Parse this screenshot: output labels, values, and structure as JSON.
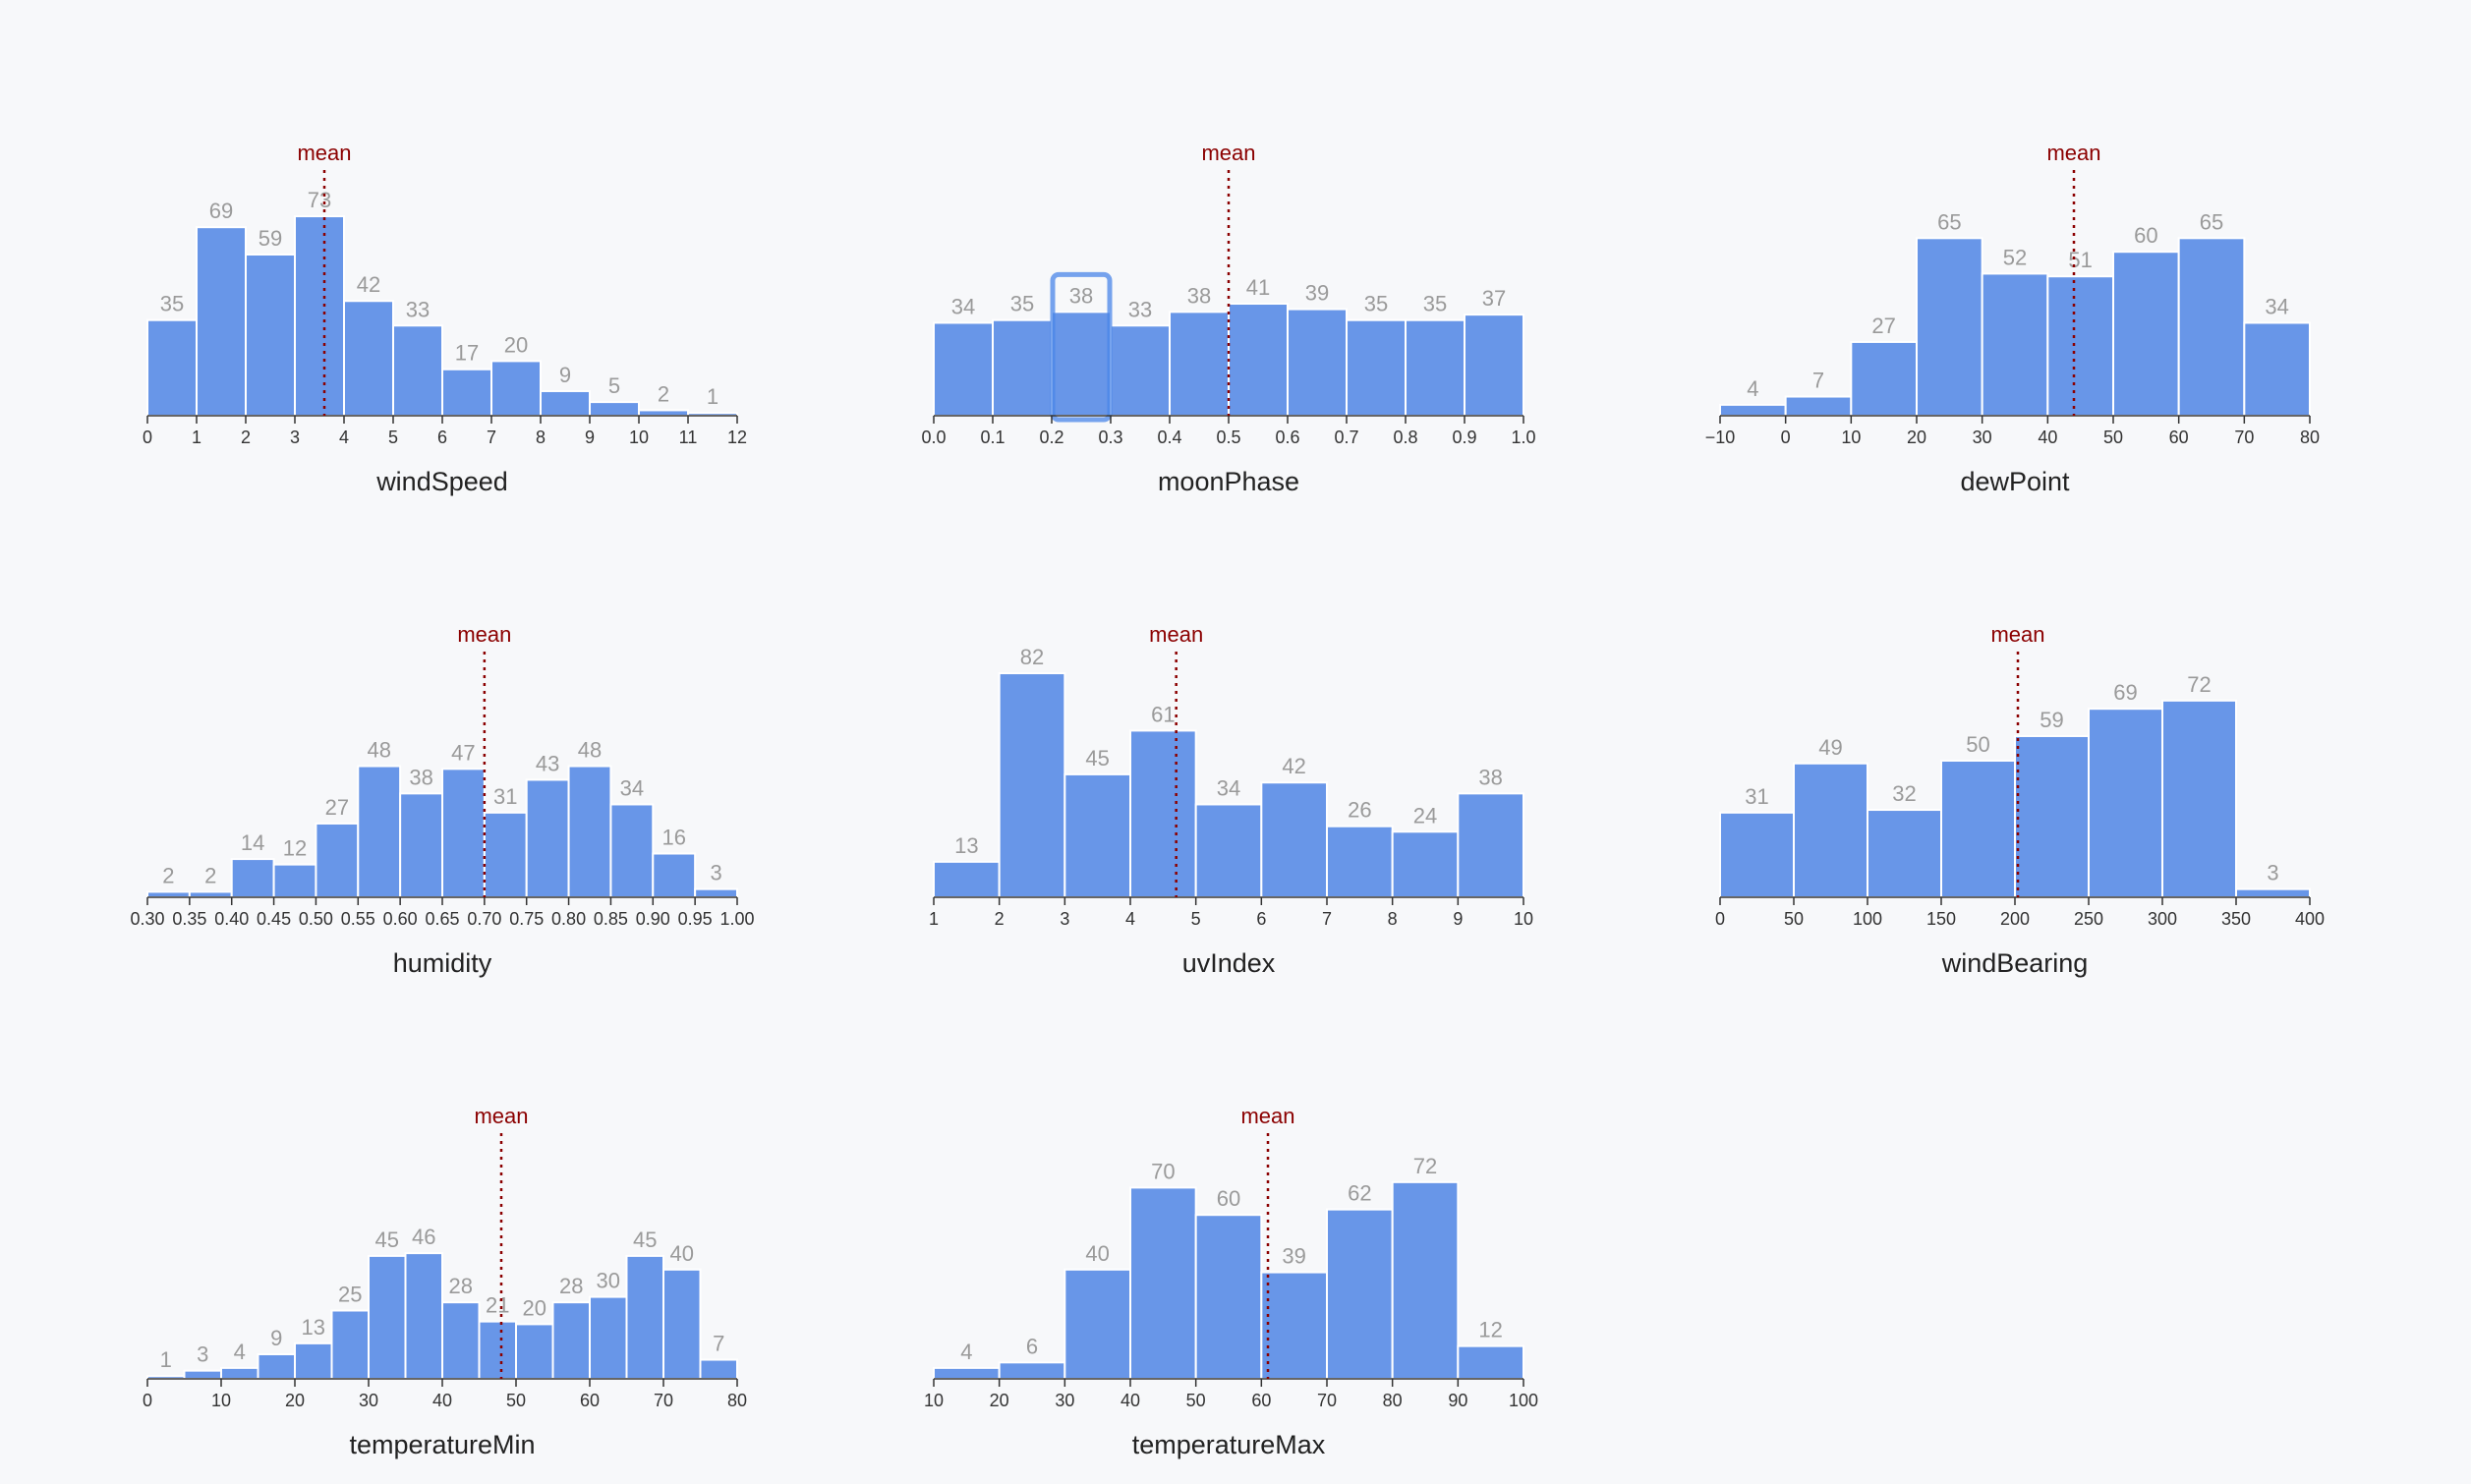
{
  "colors": {
    "bar": "#6896e8",
    "mean": "#8b0000",
    "highlight": "#4a86e8"
  },
  "chart_data": [
    {
      "type": "bar",
      "title": "",
      "xlabel": "windSpeed",
      "mean_label": "mean",
      "mean_value": 3.6,
      "bin_edges": [
        0,
        1,
        2,
        3,
        4,
        5,
        6,
        7,
        8,
        9,
        10,
        11,
        12
      ],
      "values": [
        35,
        69,
        59,
        73,
        42,
        33,
        17,
        20,
        9,
        5,
        2,
        1
      ],
      "ticks": [
        0,
        1,
        2,
        3,
        4,
        5,
        6,
        7,
        8,
        9,
        10,
        11,
        12
      ],
      "tick_labels": [
        "0",
        "1",
        "2",
        "3",
        "4",
        "5",
        "6",
        "7",
        "8",
        "9",
        "10",
        "11",
        "12"
      ]
    },
    {
      "type": "bar",
      "title": "",
      "xlabel": "moonPhase",
      "mean_label": "mean",
      "mean_value": 0.5,
      "highlight_bin": 2,
      "bin_edges": [
        0.0,
        0.1,
        0.2,
        0.3,
        0.4,
        0.5,
        0.6,
        0.7,
        0.8,
        0.9,
        1.0
      ],
      "values": [
        34,
        35,
        38,
        33,
        38,
        41,
        39,
        35,
        35,
        37
      ],
      "ticks": [
        0.0,
        0.1,
        0.2,
        0.3,
        0.4,
        0.5,
        0.6,
        0.7,
        0.8,
        0.9,
        1.0
      ],
      "tick_labels": [
        "0.0",
        "0.1",
        "0.2",
        "0.3",
        "0.4",
        "0.5",
        "0.6",
        "0.7",
        "0.8",
        "0.9",
        "1.0"
      ]
    },
    {
      "type": "bar",
      "title": "",
      "xlabel": "dewPoint",
      "mean_label": "mean",
      "mean_value": 44,
      "bin_edges": [
        -10,
        0,
        10,
        20,
        30,
        40,
        50,
        60,
        70,
        80
      ],
      "values": [
        4,
        7,
        27,
        65,
        52,
        51,
        60,
        65,
        34
      ],
      "ticks": [
        -10,
        0,
        10,
        20,
        30,
        40,
        50,
        60,
        70,
        80
      ],
      "tick_labels": [
        "−10",
        "0",
        "10",
        "20",
        "30",
        "40",
        "50",
        "60",
        "70",
        "80"
      ]
    },
    {
      "type": "bar",
      "title": "",
      "xlabel": "humidity",
      "mean_label": "mean",
      "mean_value": 0.7,
      "bin_edges": [
        0.3,
        0.35,
        0.4,
        0.45,
        0.5,
        0.55,
        0.6,
        0.65,
        0.7,
        0.75,
        0.8,
        0.85,
        0.9,
        0.95,
        1.0
      ],
      "values": [
        2,
        2,
        14,
        12,
        27,
        48,
        38,
        47,
        31,
        43,
        48,
        34,
        16,
        3
      ],
      "ticks": [
        0.3,
        0.35,
        0.4,
        0.45,
        0.5,
        0.55,
        0.6,
        0.65,
        0.7,
        0.75,
        0.8,
        0.85,
        0.9,
        0.95,
        1.0
      ],
      "tick_labels": [
        "0.30",
        "0.35",
        "0.40",
        "0.45",
        "0.50",
        "0.55",
        "0.60",
        "0.65",
        "0.70",
        "0.75",
        "0.80",
        "0.85",
        "0.90",
        "0.95",
        "1.00"
      ]
    },
    {
      "type": "bar",
      "title": "",
      "xlabel": "uvIndex",
      "mean_label": "mean",
      "mean_value": 4.7,
      "bin_edges": [
        1,
        2,
        3,
        4,
        5,
        6,
        7,
        8,
        9,
        10
      ],
      "values": [
        13,
        82,
        45,
        61,
        34,
        42,
        26,
        24,
        38
      ],
      "ticks": [
        1,
        2,
        3,
        4,
        5,
        6,
        7,
        8,
        9,
        10
      ],
      "tick_labels": [
        "1",
        "2",
        "3",
        "4",
        "5",
        "6",
        "7",
        "8",
        "9",
        "10"
      ]
    },
    {
      "type": "bar",
      "title": "",
      "xlabel": "windBearing",
      "mean_label": "mean",
      "mean_value": 202,
      "bin_edges": [
        0,
        50,
        100,
        150,
        200,
        250,
        300,
        350,
        400
      ],
      "values": [
        31,
        49,
        32,
        50,
        59,
        69,
        72,
        3
      ],
      "ticks": [
        0,
        50,
        100,
        150,
        200,
        250,
        300,
        350,
        400
      ],
      "tick_labels": [
        "0",
        "50",
        "100",
        "150",
        "200",
        "250",
        "300",
        "350",
        "400"
      ]
    },
    {
      "type": "bar",
      "title": "",
      "xlabel": "temperatureMin",
      "mean_label": "mean",
      "mean_value": 48,
      "bin_edges": [
        0,
        5,
        10,
        15,
        20,
        25,
        30,
        35,
        40,
        45,
        50,
        55,
        60,
        65,
        70,
        75,
        80
      ],
      "values": [
        1,
        3,
        4,
        9,
        13,
        25,
        45,
        46,
        28,
        21,
        20,
        28,
        30,
        45,
        40,
        7
      ],
      "ticks": [
        0,
        10,
        20,
        30,
        40,
        50,
        60,
        70,
        80
      ],
      "tick_labels": [
        "0",
        "10",
        "20",
        "30",
        "40",
        "50",
        "60",
        "70",
        "80"
      ]
    },
    {
      "type": "bar",
      "title": "",
      "xlabel": "temperatureMax",
      "mean_label": "mean",
      "mean_value": 61,
      "bin_edges": [
        10,
        20,
        30,
        40,
        50,
        60,
        70,
        80,
        90,
        100
      ],
      "values": [
        4,
        6,
        40,
        70,
        60,
        39,
        62,
        72,
        12
      ],
      "ticks": [
        10,
        20,
        30,
        40,
        50,
        60,
        70,
        80,
        90,
        100
      ],
      "tick_labels": [
        "10",
        "20",
        "30",
        "40",
        "50",
        "60",
        "70",
        "80",
        "90",
        "100"
      ]
    }
  ]
}
